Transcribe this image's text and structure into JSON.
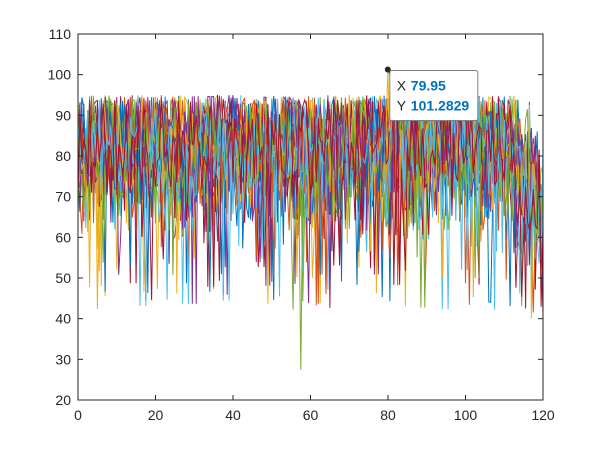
{
  "chart_data": {
    "type": "line",
    "title": "",
    "xlabel": "",
    "ylabel": "",
    "xlim": [
      0,
      120
    ],
    "ylim": [
      20,
      110
    ],
    "x_ticks": [
      0,
      20,
      40,
      60,
      80,
      100,
      120
    ],
    "y_ticks": [
      20,
      30,
      40,
      50,
      60,
      70,
      80,
      90,
      100,
      110
    ],
    "grid": false,
    "legend": "none",
    "series_colors": [
      "#0072BD",
      "#D95319",
      "#EDB120",
      "#7E2F8E",
      "#77AC30",
      "#4DBEEE",
      "#A2142F"
    ],
    "series_count": 21,
    "profile": {
      "x_step": 0.5,
      "plateau_mean": 82,
      "plateau_spread": 8.5,
      "plateau_max": 95,
      "dip_min": 27.5,
      "rolloff_start_x": 108,
      "end_mean": 63
    },
    "datatip": {
      "x": 79.95,
      "y": 101.2829,
      "x_label": "X",
      "x_value": "79.95",
      "y_label": "Y",
      "y_value": "101.2829",
      "value_color": "#0072BD"
    }
  }
}
